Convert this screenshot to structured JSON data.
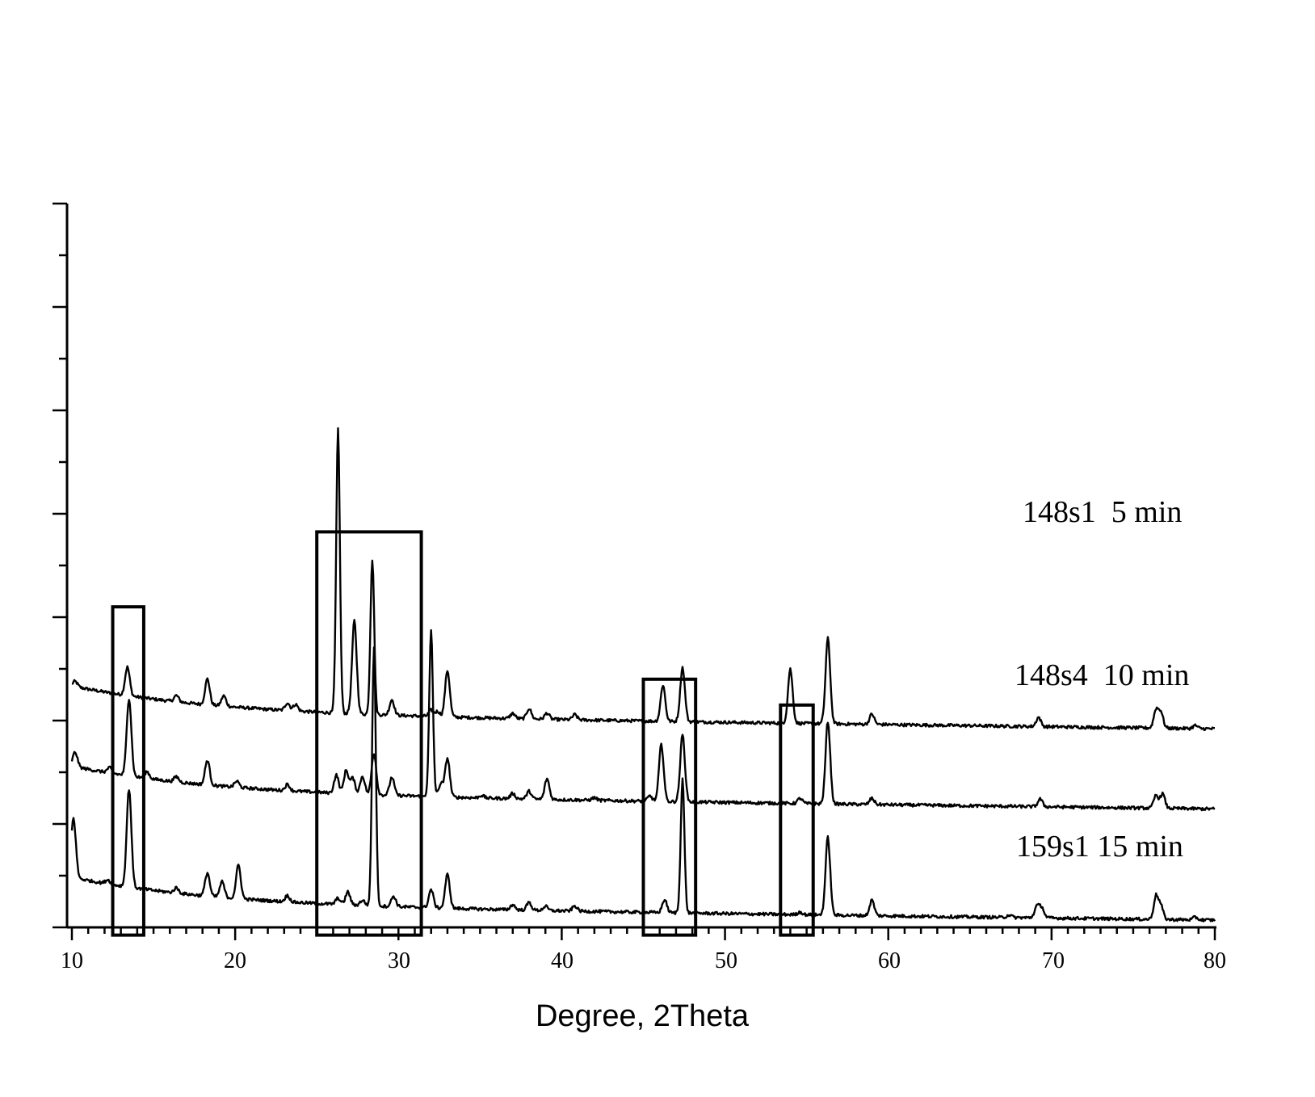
{
  "chart_data": {
    "type": "line",
    "title": "",
    "xlabel": "Degree, 2Theta",
    "ylabel": "",
    "xlim": [
      10,
      80
    ],
    "x_ticks": [
      "10",
      "20",
      "30",
      "40",
      "50",
      "60",
      "70",
      "80"
    ],
    "y_ticks_count": 15,
    "grid": false,
    "legend": "inline labels at right end of each trace",
    "series": [
      {
        "name": "148s1  5 min",
        "offset": 4.12,
        "peaks": [
          [
            10.2,
            0.1
          ],
          [
            13.4,
            0.55
          ],
          [
            16.4,
            0.12
          ],
          [
            18.3,
            0.5
          ],
          [
            19.3,
            0.2
          ],
          [
            23.2,
            0.15
          ],
          [
            23.7,
            0.13
          ],
          [
            26.3,
            5.5
          ],
          [
            27.3,
            1.8
          ],
          [
            28.4,
            3.0
          ],
          [
            29.6,
            0.3
          ],
          [
            32.0,
            0.12
          ],
          [
            32.4,
            0.1
          ],
          [
            33.0,
            0.9
          ],
          [
            37.0,
            0.1
          ],
          [
            38.0,
            0.2
          ],
          [
            39.1,
            0.12
          ],
          [
            40.8,
            0.1
          ],
          [
            46.2,
            0.7
          ],
          [
            47.4,
            1.05
          ],
          [
            54.0,
            1.05
          ],
          [
            56.3,
            1.65
          ],
          [
            59.0,
            0.2
          ],
          [
            69.2,
            0.18
          ],
          [
            76.4,
            0.35
          ],
          [
            76.7,
            0.3
          ],
          [
            78.8,
            0.06
          ]
        ]
      },
      {
        "name": "148s4  10 min",
        "offset": 2.57,
        "peaks": [
          [
            10.2,
            0.28
          ],
          [
            12.3,
            0.1
          ],
          [
            13.5,
            1.5
          ],
          [
            14.6,
            0.13
          ],
          [
            16.4,
            0.1
          ],
          [
            18.3,
            0.48
          ],
          [
            20.1,
            0.12
          ],
          [
            23.2,
            0.12
          ],
          [
            26.2,
            0.35
          ],
          [
            26.8,
            0.45
          ],
          [
            27.2,
            0.3
          ],
          [
            27.8,
            0.35
          ],
          [
            28.5,
            0.8
          ],
          [
            29.6,
            0.35
          ],
          [
            32.0,
            3.2
          ],
          [
            32.6,
            0.25
          ],
          [
            33.0,
            0.75
          ],
          [
            35.1,
            0.05
          ],
          [
            37.0,
            0.1
          ],
          [
            38.0,
            0.15
          ],
          [
            39.1,
            0.4
          ],
          [
            42.0,
            0.05
          ],
          [
            45.4,
            0.1
          ],
          [
            46.1,
            1.1
          ],
          [
            47.4,
            1.3
          ],
          [
            54.6,
            0.1
          ],
          [
            56.3,
            1.6
          ],
          [
            59.0,
            0.12
          ],
          [
            69.3,
            0.15
          ],
          [
            76.4,
            0.25
          ],
          [
            76.8,
            0.28
          ]
        ]
      },
      {
        "name": "159s1 15 min",
        "offset": 0.42,
        "peaks": [
          [
            10.1,
            1.15
          ],
          [
            12.2,
            0.08
          ],
          [
            13.5,
            1.9
          ],
          [
            16.4,
            0.1
          ],
          [
            18.3,
            0.45
          ],
          [
            19.2,
            0.3
          ],
          [
            20.2,
            0.65
          ],
          [
            23.2,
            0.12
          ],
          [
            26.3,
            0.12
          ],
          [
            26.9,
            0.25
          ],
          [
            27.8,
            0.1
          ],
          [
            28.5,
            5.0
          ],
          [
            29.7,
            0.2
          ],
          [
            32.0,
            0.35
          ],
          [
            33.0,
            0.65
          ],
          [
            37.0,
            0.1
          ],
          [
            38.0,
            0.15
          ],
          [
            39.0,
            0.08
          ],
          [
            40.8,
            0.1
          ],
          [
            46.3,
            0.25
          ],
          [
            47.4,
            2.6
          ],
          [
            54.6,
            0.05
          ],
          [
            56.3,
            1.5
          ],
          [
            59.0,
            0.3
          ],
          [
            67.4,
            0.05
          ],
          [
            69.1,
            0.22
          ],
          [
            69.4,
            0.2
          ],
          [
            76.4,
            0.45
          ],
          [
            76.7,
            0.25
          ],
          [
            78.8,
            0.05
          ]
        ]
      }
    ],
    "highlight_boxes": [
      {
        "x": [
          12.5,
          14.4
        ],
        "y": [
          -0.15,
          6.2
        ]
      },
      {
        "x": [
          25.0,
          31.4
        ],
        "y": [
          -0.15,
          7.65
        ]
      },
      {
        "x": [
          45.0,
          48.2
        ],
        "y": [
          -0.15,
          4.8
        ]
      },
      {
        "x": [
          53.4,
          55.4
        ],
        "y": [
          -0.15,
          4.3
        ]
      }
    ]
  },
  "labels": {
    "series1": "148s1  5 min",
    "series2": "148s4  10 min",
    "series3": "159s1 15 min",
    "xaxis_title": "Degree, 2Theta",
    "ticks": [
      "10",
      "20",
      "30",
      "40",
      "50",
      "60",
      "70",
      "80"
    ]
  }
}
